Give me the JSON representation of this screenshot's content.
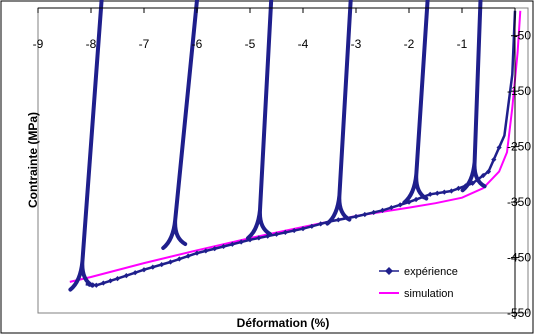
{
  "chart_data": {
    "type": "line",
    "xlabel": "Déformation (%)",
    "ylabel": "Contrainte (MPa)",
    "xlim": [
      -9,
      0
    ],
    "ylim": [
      -550,
      0
    ],
    "x_ticks": [
      "-9",
      "-8",
      "-7",
      "-6",
      "-5",
      "-4",
      "-3",
      "-2",
      "-1"
    ],
    "y_ticks": [
      "-50",
      "-150",
      "-250",
      "-350",
      "-450",
      "-550"
    ],
    "grid": false,
    "legend_position": "bottom-right",
    "series": [
      {
        "name": "expérience",
        "color": "#1f1f8c",
        "marker": "diamond",
        "envelope": [
          [
            0,
            -5
          ],
          [
            -0.05,
            -120
          ],
          [
            -0.2,
            -230
          ],
          [
            -0.5,
            -295
          ],
          [
            -0.8,
            -316
          ],
          [
            -1.2,
            -330
          ],
          [
            -1.6,
            -336
          ],
          [
            -2.0,
            -350
          ],
          [
            -2.5,
            -365
          ],
          [
            -3.0,
            -376
          ],
          [
            -3.5,
            -385
          ],
          [
            -4.0,
            -398
          ],
          [
            -4.5,
            -408
          ],
          [
            -5.0,
            -418
          ],
          [
            -5.5,
            -430
          ],
          [
            -6.0,
            -442
          ],
          [
            -6.5,
            -458
          ],
          [
            -7.0,
            -472
          ],
          [
            -7.5,
            -488
          ],
          [
            -7.9,
            -500
          ],
          [
            -8.1,
            -498
          ]
        ],
        "unloading_cycles": [
          {
            "top_x": -0.65,
            "bottom_x": -0.8,
            "bottom_y": -318
          },
          {
            "top_x": -1.65,
            "bottom_x": -1.9,
            "bottom_y": -340
          },
          {
            "top_x": -3.1,
            "bottom_x": -3.35,
            "bottom_y": -378
          },
          {
            "top_x": -4.6,
            "bottom_x": -4.85,
            "bottom_y": -404
          },
          {
            "top_x": -6.0,
            "bottom_x": -6.45,
            "bottom_y": -422
          },
          {
            "top_x": -7.8,
            "bottom_x": -8.2,
            "bottom_y": -497
          }
        ]
      },
      {
        "name": "simulation",
        "color": "#ff00ff",
        "points": [
          [
            0.1,
            -5
          ],
          [
            0.05,
            -80
          ],
          [
            -0.05,
            -180
          ],
          [
            -0.15,
            -260
          ],
          [
            -0.3,
            -295
          ],
          [
            -0.6,
            -325
          ],
          [
            -1.0,
            -342
          ],
          [
            -1.5,
            -352
          ],
          [
            -2.0,
            -360
          ],
          [
            -3.0,
            -375
          ],
          [
            -4.0,
            -395
          ],
          [
            -5.0,
            -415
          ],
          [
            -6.0,
            -437
          ],
          [
            -7.0,
            -460
          ],
          [
            -8.0,
            -485
          ],
          [
            -8.4,
            -494
          ]
        ]
      }
    ]
  }
}
